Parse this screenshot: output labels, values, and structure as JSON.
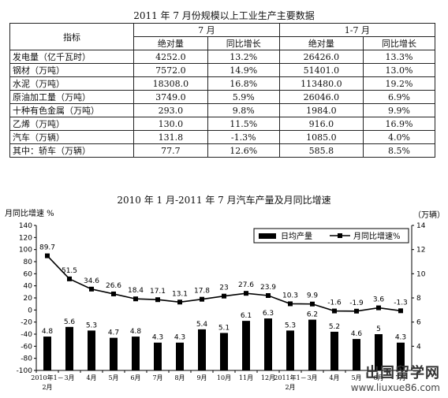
{
  "table": {
    "title": "2011 年 7 月份规模以上工业生产主要数据",
    "header_indicator": "指标",
    "header_group1": "7 月",
    "header_group2": "1-7 月",
    "sub_abs": "绝对量",
    "sub_yoy": "同比增长",
    "rows": [
      {
        "name": "发电量（亿千瓦时）",
        "m_abs": "4252.0",
        "m_yoy": "13.2%",
        "c_abs": "26426.0",
        "c_yoy": "13.3%"
      },
      {
        "name": "钢材（万吨）",
        "m_abs": "7572.0",
        "m_yoy": "14.9%",
        "c_abs": "51401.0",
        "c_yoy": "13.0%"
      },
      {
        "name": "水泥（万吨）",
        "m_abs": "18308.0",
        "m_yoy": "16.8%",
        "c_abs": "113480.0",
        "c_yoy": "19.2%"
      },
      {
        "name": "原油加工量（万吨）",
        "m_abs": "3749.0",
        "m_yoy": "5.9%",
        "c_abs": "26046.0",
        "c_yoy": "6.9%"
      },
      {
        "name": "十种有色金属（万吨）",
        "m_abs": "293.0",
        "m_yoy": "9.8%",
        "c_abs": "1984.0",
        "c_yoy": "9.9%"
      },
      {
        "name": "乙烯（万吨）",
        "m_abs": "130.0",
        "m_yoy": "11.5%",
        "c_abs": "916.0",
        "c_yoy": "16.9%"
      },
      {
        "name": "汽车（万辆）",
        "m_abs": "131.8",
        "m_yoy": "-1.3%",
        "c_abs": "1085.0",
        "c_yoy": "4.0%"
      },
      {
        "name": "其中：轿车（万辆）",
        "m_abs": "77.7",
        "m_yoy": "12.6%",
        "c_abs": "585.8",
        "c_yoy": "8.5%"
      }
    ]
  },
  "chart_data": {
    "type": "bar",
    "title": "2010 年 1 月-2011 年 7 月汽车产量及月同比增速",
    "ylabel_left": "月同比增速 %",
    "ylabel_right": "（万辆）",
    "categories": [
      "2010年1－2月",
      "3月",
      "4月",
      "5月",
      "6月",
      "7月",
      "8月",
      "9月",
      "10月",
      "11月",
      "12月",
      "2011年1－2月",
      "3月",
      "4月",
      "5月",
      "6月",
      "7月"
    ],
    "tick_labels": [
      "2010年1－",
      "3月",
      "4月",
      "5月",
      "6月",
      "7月",
      "8月",
      "9月",
      "10月",
      "11月",
      "12月",
      "2011年1－",
      "3月",
      "4月",
      "5月",
      "6月",
      "7月"
    ],
    "tick_sublabels": [
      {
        "index": 0,
        "text": "2月"
      },
      {
        "index": 11,
        "text": "2月"
      }
    ],
    "series": [
      {
        "name": "日均产量",
        "axis": "right",
        "kind": "bar",
        "values": [
          4.8,
          5.6,
          5.3,
          4.7,
          4.8,
          4.3,
          4.3,
          5.4,
          5.1,
          6.1,
          6.3,
          5.3,
          6.2,
          5.2,
          4.6,
          5,
          4.3
        ]
      },
      {
        "name": "月同比增速%",
        "axis": "left",
        "kind": "line",
        "values": [
          89.7,
          51.5,
          34.6,
          26.6,
          18.4,
          17.1,
          13.1,
          17.8,
          23,
          27.6,
          23.9,
          10.3,
          9.9,
          -1.6,
          -1.9,
          3.6,
          -1.3
        ]
      }
    ],
    "y_left": {
      "min": -100,
      "max": 140,
      "step": 20
    },
    "y_right": {
      "min": 2,
      "max": 14,
      "step": 2
    },
    "legend": "top-right",
    "grid": false
  },
  "watermark": {
    "text_cn": "出国留学网",
    "url": "www.liuxue86.com"
  }
}
